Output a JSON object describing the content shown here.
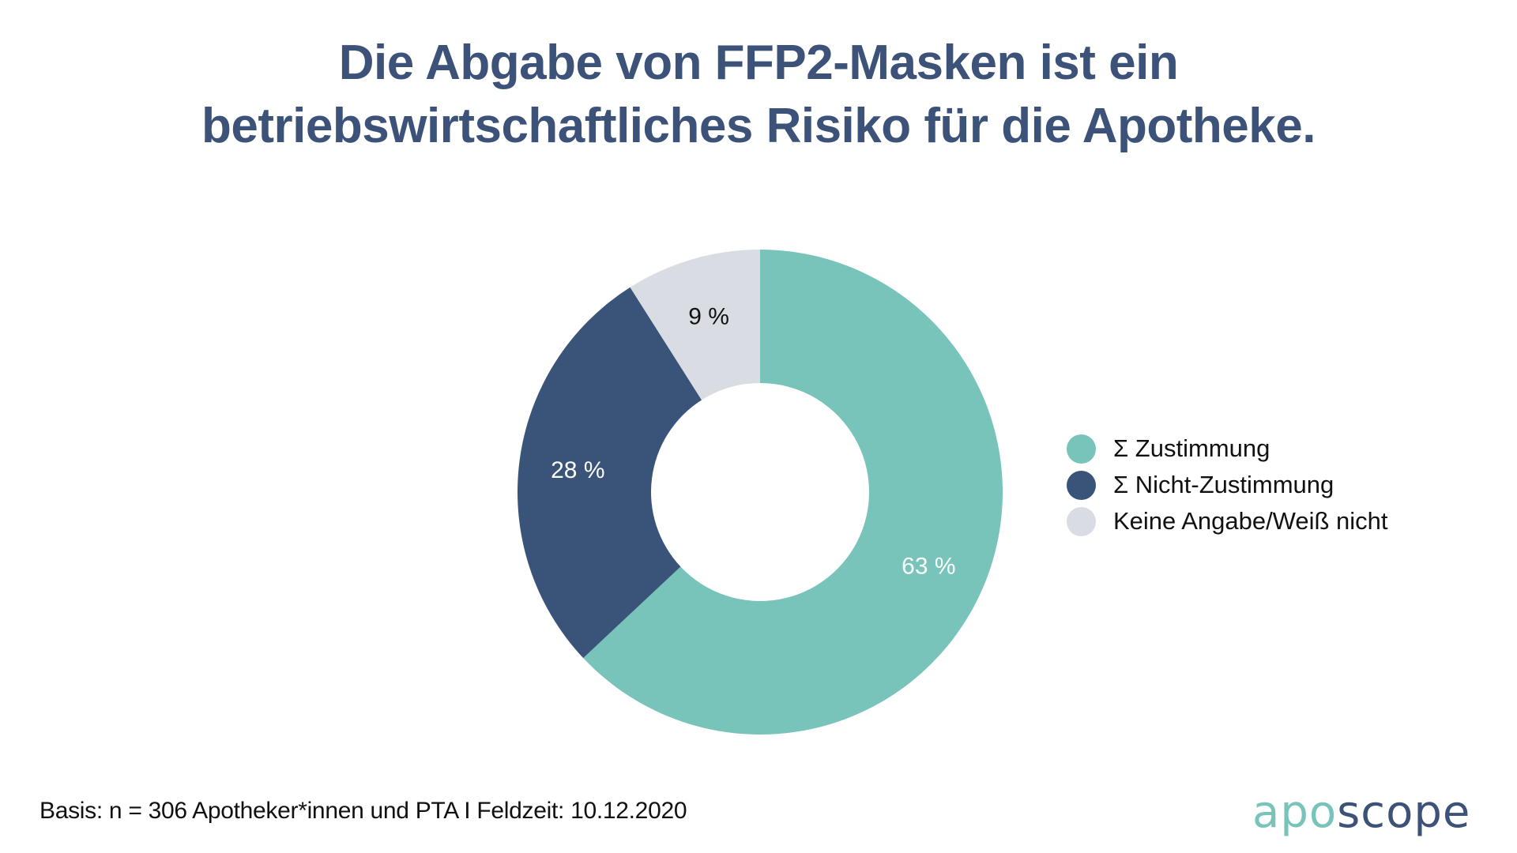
{
  "title": {
    "line1": "Die Abgabe von FFP2-Masken ist ein",
    "line2": "betriebswirtschaftliches Risiko für die Apotheke."
  },
  "chart_data": {
    "type": "pie",
    "variant": "donut",
    "title": "Die Abgabe von FFP2-Masken ist ein betriebswirtschaftliches Risiko für die Apotheke.",
    "categories": [
      "Σ Zustimmung",
      "Σ Nicht-Zustimmung",
      "Keine Angabe/Weiß nicht"
    ],
    "values": [
      63,
      28,
      9
    ],
    "unit": "%",
    "data_labels": [
      "63 %",
      "28 %",
      "9 %"
    ],
    "colors": [
      "#78c4bb",
      "#3a5479",
      "#d9dce3"
    ],
    "label_colors": [
      "#ffffff",
      "#ffffff",
      "#111111"
    ],
    "start": "12 o'clock, clockwise",
    "legend_position": "right"
  },
  "legend": [
    {
      "label": "Σ Zustimmung",
      "color": "#78c4bb"
    },
    {
      "label": "Σ Nicht-Zustimmung",
      "color": "#3a5479"
    },
    {
      "label": "Keine Angabe/Weiß nicht",
      "color": "#d9dce3"
    }
  ],
  "footnote": "Basis: n = 306 Apotheker*innen und PTA I Feldzeit: 10.12.2020",
  "logo": {
    "part1": "apo",
    "part2": "scope"
  }
}
